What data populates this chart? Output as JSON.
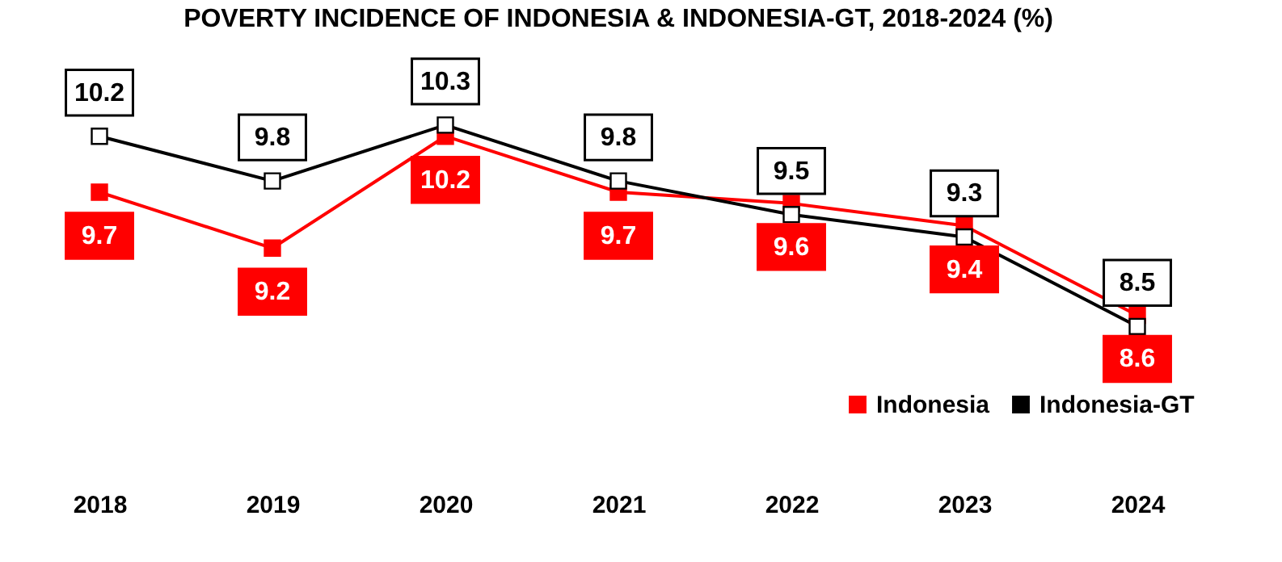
{
  "chart_data": {
    "type": "line",
    "title": "POVERTY INCIDENCE OF INDONESIA & INDONESIA-GT, 2018-2024 (%)",
    "categories": [
      "2018",
      "2019",
      "2020",
      "2021",
      "2022",
      "2023",
      "2024"
    ],
    "series": [
      {
        "name": "Indonesia",
        "color": "#ff0000",
        "values": [
          9.7,
          9.2,
          10.2,
          9.7,
          9.6,
          9.4,
          8.6
        ]
      },
      {
        "name": "Indonesia-GT",
        "color": "#000000",
        "values": [
          10.2,
          9.8,
          10.3,
          9.8,
          9.5,
          9.3,
          8.5
        ]
      }
    ],
    "data_labels": true,
    "marker": "square",
    "legend": "bottom right",
    "grid": false
  }
}
